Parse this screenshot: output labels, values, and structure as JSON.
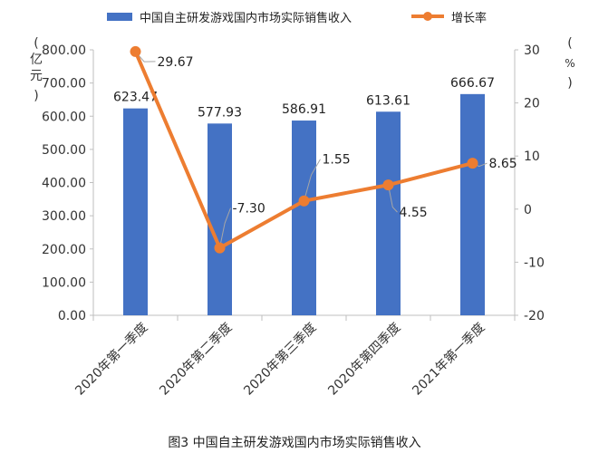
{
  "chart_data": {
    "type": "bar",
    "categories": [
      "2020年第一季度",
      "2020年第二季度",
      "2020年第三季度",
      "2020年第四季度",
      "2021年第一季度"
    ],
    "series": [
      {
        "name": "中国自主研发游戏国内市场实际销售收入",
        "type": "bar",
        "axis": "left",
        "values": [
          623.47,
          577.93,
          586.91,
          613.61,
          666.67
        ],
        "labels": [
          "623.47",
          "577.93",
          "586.91",
          "613.61",
          "666.67"
        ],
        "color": "#4472C4"
      },
      {
        "name": "增长率",
        "type": "line",
        "axis": "right",
        "values": [
          29.67,
          -7.3,
          1.55,
          4.55,
          8.65
        ],
        "labels": [
          "29.67",
          "-7.30",
          "1.55",
          "4.55",
          "8.65"
        ],
        "color": "#ED7D31"
      }
    ],
    "y_left": {
      "label": "亿元",
      "unit": "亿元",
      "ylim": [
        0,
        800
      ],
      "ticks": [
        "0.00",
        "100.00",
        "200.00",
        "300.00",
        "400.00",
        "500.00",
        "600.00",
        "700.00",
        "800.00"
      ]
    },
    "y_right": {
      "label": "%",
      "unit": "%",
      "ylim": [
        -20,
        30
      ],
      "ticks": [
        "-20",
        "-10",
        "0",
        "10",
        "20",
        "30"
      ]
    },
    "legend_placement": "top-center",
    "grid": false
  },
  "caption": "图3  中国自主研发游戏国内市场实际销售收入"
}
